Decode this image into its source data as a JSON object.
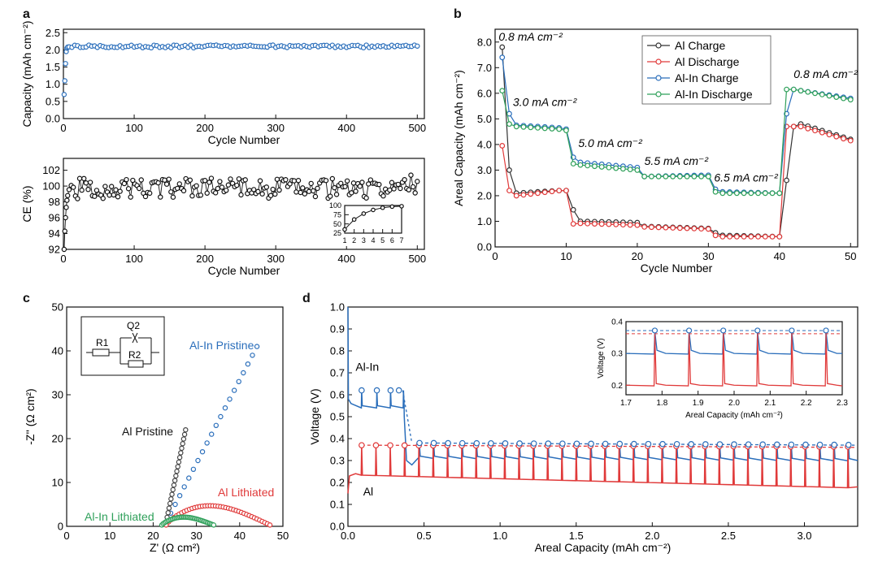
{
  "panels": {
    "a": "a",
    "b": "b",
    "c": "c",
    "d": "d"
  },
  "chart_data": [
    {
      "id": "a_top",
      "type": "scatter",
      "xlabel": "Cycle Number",
      "ylabel": "Capacity (mAh cm⁻²)",
      "xlim": [
        0,
        510
      ],
      "ylim": [
        0,
        2.6
      ],
      "xticks": [
        0,
        100,
        200,
        300,
        400,
        500
      ],
      "yticks": [
        0.0,
        0.5,
        1.0,
        1.5,
        2.0,
        2.5
      ],
      "series": [
        {
          "name": "Capacity",
          "color": "#2a6ebb",
          "initial": [
            [
              1,
              0.7
            ],
            [
              2,
              1.1
            ],
            [
              3,
              1.6
            ],
            [
              4,
              1.95
            ],
            [
              5,
              2.05
            ],
            [
              6,
              2.08
            ]
          ],
          "plateau": 2.1
        }
      ]
    },
    {
      "id": "a_bottom",
      "type": "scatter",
      "xlabel": "Cycle Number",
      "ylabel": "CE (%)",
      "xlim": [
        0,
        510
      ],
      "ylim": [
        92,
        103.5
      ],
      "xticks": [
        0,
        100,
        200,
        300,
        400,
        500
      ],
      "yticks": [
        92,
        94,
        96,
        98,
        100,
        102
      ],
      "series": [
        {
          "name": "CE",
          "color": "#111111",
          "initial": [
            [
              1,
              92
            ],
            [
              2,
              94.3
            ],
            [
              3,
              96
            ],
            [
              4,
              97.3
            ],
            [
              5,
              98.2
            ],
            [
              6,
              98.8
            ]
          ],
          "plateau": 99.7
        }
      ],
      "inset": {
        "xticks": [
          1,
          2,
          3,
          4,
          5,
          6,
          7
        ],
        "yticks": [
          25,
          50,
          75,
          100
        ],
        "x": [
          1,
          2,
          3,
          4,
          5,
          6,
          7
        ],
        "y": [
          35,
          62,
          78,
          88,
          94,
          97,
          98
        ]
      }
    },
    {
      "id": "b",
      "type": "line",
      "xlabel": "Cycle Number",
      "ylabel": "Areal Capacity (mAh cm⁻²)",
      "xlim": [
        0,
        51
      ],
      "ylim": [
        0,
        8.5
      ],
      "xticks": [
        0,
        10,
        20,
        30,
        40,
        50
      ],
      "yticks": [
        0.0,
        1.0,
        2.0,
        3.0,
        4.0,
        5.0,
        6.0,
        7.0,
        8.0
      ],
      "legend": [
        "Al Charge",
        "Al Discharge",
        "Al-In Charge",
        "Al-In Discharge"
      ],
      "annotations": [
        {
          "label": "0.8 mA cm⁻²",
          "x": 0.5,
          "y": 8.05
        },
        {
          "label": "3.0 mA cm⁻²",
          "x": 2.5,
          "y": 5.5
        },
        {
          "label": "5.0 mA cm⁻²",
          "x": 11.7,
          "y": 3.9
        },
        {
          "label": "5.5 mA cm⁻²",
          "x": 21,
          "y": 3.2
        },
        {
          "label": "6.5 mA cm⁻²",
          "x": 30.8,
          "y": 2.55
        },
        {
          "label": "0.8 mA cm⁻²",
          "x": 42,
          "y": 6.6
        }
      ],
      "series": [
        {
          "name": "Al Charge",
          "color": "#333333",
          "segments": [
            [
              1,
              7.8,
              7.8
            ],
            [
              2,
              3.0,
              3.0
            ],
            [
              3,
              2.1,
              2.2
            ],
            [
              10,
              2.2,
              2.2
            ],
            [
              11,
              1.45,
              1.45
            ],
            [
              12,
              1.0,
              0.95
            ],
            [
              21,
              0.8,
              0.72
            ],
            [
              31,
              0.55,
              0.55
            ],
            [
              32,
              0.45,
              0.4
            ],
            [
              41,
              2.6,
              2.6
            ],
            [
              42,
              4.7,
              4.7
            ],
            [
              43,
              4.8,
              4.2
            ]
          ]
        },
        {
          "name": "Al Discharge",
          "color": "#e03a3a",
          "segments": [
            [
              1,
              3.95,
              3.95
            ],
            [
              2,
              2.2,
              2.2
            ],
            [
              3,
              2.0,
              2.2
            ],
            [
              10,
              2.2,
              2.2
            ],
            [
              11,
              0.9,
              0.9
            ],
            [
              12,
              0.92,
              0.85
            ],
            [
              21,
              0.78,
              0.7
            ],
            [
              31,
              0.45,
              0.45
            ],
            [
              32,
              0.4,
              0.4
            ],
            [
              41,
              4.7,
              4.7
            ],
            [
              42,
              4.7,
              4.7
            ],
            [
              43,
              4.7,
              4.15
            ]
          ]
        },
        {
          "name": "Al-In Charge",
          "color": "#2a6ebb",
          "segments": [
            [
              1,
              7.4,
              7.4
            ],
            [
              2,
              5.2,
              5.2
            ],
            [
              3,
              4.75,
              4.65
            ],
            [
              10,
              4.6,
              4.6
            ],
            [
              11,
              3.5,
              3.5
            ],
            [
              12,
              3.3,
              3.1
            ],
            [
              21,
              2.75,
              2.8
            ],
            [
              31,
              2.25,
              2.25
            ],
            [
              32,
              2.15,
              2.1
            ],
            [
              41,
              5.2,
              5.2
            ],
            [
              42,
              6.15,
              6.15
            ],
            [
              43,
              6.1,
              5.8
            ]
          ]
        },
        {
          "name": "Al-In Discharge",
          "color": "#2fa05a",
          "segments": [
            [
              1,
              6.1,
              6.1
            ],
            [
              2,
              4.8,
              4.8
            ],
            [
              3,
              4.7,
              4.6
            ],
            [
              10,
              4.55,
              4.55
            ],
            [
              11,
              3.25,
              3.25
            ],
            [
              12,
              3.2,
              3.0
            ],
            [
              21,
              2.75,
              2.75
            ],
            [
              31,
              2.15,
              2.15
            ],
            [
              32,
              2.1,
              2.1
            ],
            [
              41,
              6.15,
              6.15
            ],
            [
              42,
              6.15,
              6.15
            ],
            [
              43,
              6.1,
              5.75
            ]
          ]
        }
      ]
    },
    {
      "id": "c",
      "type": "scatter",
      "xlabel": "Z' (Ω cm²)",
      "ylabel": "-Z'' (Ω cm²)",
      "xlim": [
        0,
        50
      ],
      "ylim": [
        0,
        50
      ],
      "xticks": [
        0,
        10,
        20,
        30,
        40,
        50
      ],
      "yticks": [
        0,
        10,
        20,
        30,
        40,
        50
      ],
      "labels": {
        "al_in_pristine": "Al-In Pristine",
        "al_pristine": "Al Pristine",
        "al_lithiated": "Al Lithiated",
        "al_in_lithiated": "Al-In Lithiated"
      },
      "circuit": {
        "r1": "R1",
        "q2": "Q2",
        "r2": "R2"
      },
      "series": [
        {
          "name": "Al-In Pristine",
          "color": "#2a6ebb",
          "start": [
            23,
            1
          ],
          "end": [
            44,
            41
          ]
        },
        {
          "name": "Al Pristine",
          "color": "#444444",
          "start": [
            23,
            1
          ],
          "end": [
            27.5,
            22
          ]
        },
        {
          "name": "Al Lithiated",
          "color": "#e03a3a",
          "arc": {
            "x0": 23,
            "x1": 47,
            "peak": 4.4
          }
        },
        {
          "name": "Al-In Lithiated",
          "color": "#2fa05a",
          "arc": {
            "x0": 22,
            "x1": 34,
            "peak": 1.8
          }
        }
      ]
    },
    {
      "id": "d",
      "type": "line",
      "xlabel": "Areal Capacity (mAh cm⁻²)",
      "ylabel": "Voltage (V)",
      "xlim": [
        0,
        3.35
      ],
      "ylim": [
        0,
        1.0
      ],
      "xticks": [
        0.0,
        0.5,
        1.0,
        1.5,
        2.0,
        2.5,
        3.0
      ],
      "yticks": [
        0.0,
        0.1,
        0.2,
        0.3,
        0.4,
        0.5,
        0.6,
        0.7,
        0.8,
        0.9,
        1.0
      ],
      "labels": {
        "al_in": "Al-In",
        "al": "Al"
      },
      "series": [
        {
          "name": "Al-In",
          "color": "#2a6ebb",
          "base_start": 0.57,
          "base_end": 0.3,
          "peak": 0.62,
          "marker": 0.37
        },
        {
          "name": "Al",
          "color": "#e03a3a",
          "base_start": 0.23,
          "base_end": 0.18,
          "peak": 0.37,
          "marker": 0.365
        }
      ],
      "inset": {
        "xlabel": "Areal Capacity (mAh cm⁻²)",
        "ylabel": "Voltage (V)",
        "xlim": [
          1.7,
          2.3
        ],
        "ylim": [
          0.17,
          0.4
        ],
        "xticks": [
          1.7,
          1.8,
          1.9,
          2.0,
          2.1,
          2.2,
          2.3
        ],
        "yticks": [
          0.2,
          0.3,
          0.4
        ]
      }
    }
  ]
}
